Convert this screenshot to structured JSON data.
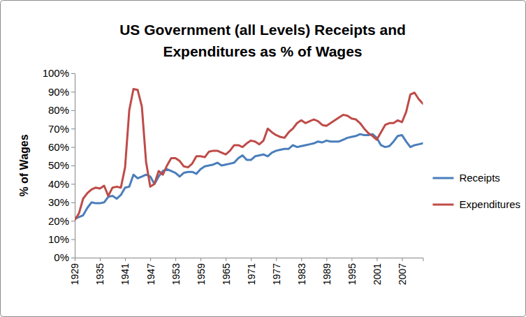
{
  "chart_data": {
    "type": "line",
    "title": "US Government (all Levels) Receipts and Expenditures as % of Wages",
    "y_label": "% of Wages",
    "x": [
      1929,
      1930,
      1931,
      1932,
      1933,
      1934,
      1935,
      1936,
      1937,
      1938,
      1939,
      1940,
      1941,
      1942,
      1943,
      1944,
      1945,
      1946,
      1947,
      1948,
      1949,
      1950,
      1951,
      1952,
      1953,
      1954,
      1955,
      1956,
      1957,
      1958,
      1959,
      1960,
      1961,
      1962,
      1963,
      1964,
      1965,
      1966,
      1967,
      1968,
      1969,
      1970,
      1971,
      1972,
      1973,
      1974,
      1975,
      1976,
      1977,
      1978,
      1979,
      1980,
      1981,
      1982,
      1983,
      1984,
      1985,
      1986,
      1987,
      1988,
      1989,
      1990,
      1991,
      1992,
      1993,
      1994,
      1995,
      1996,
      1997,
      1998,
      1999,
      2000,
      2001,
      2002,
      2003,
      2004,
      2005,
      2006,
      2007,
      2008,
      2009,
      2010,
      2011,
      2012
    ],
    "series": [
      {
        "name": "Receipts",
        "color": "#4a7ebb",
        "values": [
          21,
          22,
          23,
          27,
          30,
          29.5,
          29.5,
          30,
          33,
          33.5,
          32,
          34,
          38,
          38.5,
          45,
          43,
          44,
          45,
          44,
          40,
          44,
          47,
          48,
          47,
          46,
          44,
          46,
          46.5,
          46.5,
          45.5,
          48,
          49.5,
          50,
          50.5,
          51.5,
          50,
          50.5,
          51,
          51.5,
          54,
          55.5,
          53,
          53,
          55,
          55.5,
          56,
          55,
          57,
          58,
          58.5,
          59,
          59,
          61,
          60,
          60.5,
          61,
          61.5,
          62,
          63,
          62.5,
          63.5,
          63,
          63,
          63,
          64,
          65,
          65.5,
          66,
          67,
          66.5,
          66.5,
          67,
          65,
          61,
          60,
          60.5,
          63,
          66,
          66.5,
          63,
          60,
          61,
          61.5,
          62
        ]
      },
      {
        "name": "Expenditures",
        "color": "#be4b48",
        "values": [
          20.5,
          24,
          32,
          35,
          37,
          38,
          37.5,
          39,
          33.5,
          38,
          38.5,
          38,
          49,
          80,
          91.5,
          91,
          82,
          52,
          38.5,
          40,
          47,
          45,
          50,
          54,
          54,
          52.5,
          49.5,
          49,
          51,
          55,
          55,
          54.5,
          57.5,
          58,
          58,
          57,
          56,
          58,
          61,
          61,
          60,
          62,
          63.5,
          63,
          61.5,
          63.5,
          70,
          68,
          66.5,
          65.5,
          65,
          68,
          70,
          73,
          74.5,
          73,
          74,
          75,
          74,
          72,
          71.5,
          73,
          74.5,
          76,
          77.5,
          77,
          75.5,
          75,
          73,
          70,
          67.5,
          66,
          64,
          68,
          72,
          73,
          73,
          74.5,
          73.5,
          79,
          88.5,
          89.5,
          86,
          83.5
        ]
      }
    ],
    "xlim": [
      1929,
      2012
    ],
    "xticks": [
      1929,
      1935,
      1941,
      1947,
      1953,
      1959,
      1965,
      1971,
      1977,
      1983,
      1989,
      1995,
      2001,
      2007
    ],
    "ylim": [
      0,
      100
    ],
    "yticks": [
      {
        "value": 0,
        "label": "0%"
      },
      {
        "value": 10,
        "label": "10%"
      },
      {
        "value": 20,
        "label": "20%"
      },
      {
        "value": 30,
        "label": "30%"
      },
      {
        "value": 40,
        "label": "40%"
      },
      {
        "value": 50,
        "label": "50%"
      },
      {
        "value": 60,
        "label": "60%"
      },
      {
        "value": 70,
        "label": "70%"
      },
      {
        "value": 80,
        "label": "80%"
      },
      {
        "value": 90,
        "label": "90%"
      },
      {
        "value": 100,
        "label": "100%"
      }
    ],
    "grid": false,
    "legend": "right"
  }
}
